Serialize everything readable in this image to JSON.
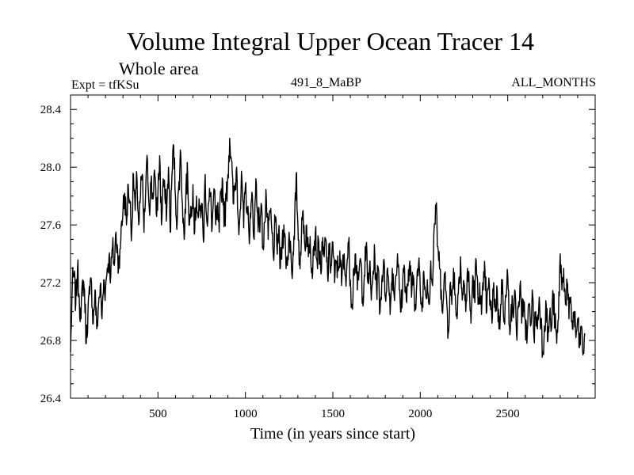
{
  "chart_data": {
    "type": "line",
    "title": "Volume Integral Upper Ocean Tracer 14",
    "subtitle": "Whole area",
    "annotations": {
      "left": "Expt = tfKSu",
      "center": "491_8_MaBP",
      "right": "ALL_MONTHS"
    },
    "xlabel": "Time (in years since start)",
    "ylabel": "",
    "xlim": [
      0,
      3000
    ],
    "ylim": [
      26.4,
      28.5
    ],
    "xticks": [
      500,
      1000,
      1500,
      2000,
      2500
    ],
    "xtick_labels": [
      "500",
      "1000",
      "1500",
      "2000",
      "2500"
    ],
    "yticks": [
      26.4,
      26.8,
      27.2,
      27.6,
      28.0,
      28.4
    ],
    "ytick_labels": [
      "26.4",
      "26.8",
      "27.2",
      "27.6",
      "28.0",
      "28.4"
    ],
    "series": [
      {
        "name": "Tracer 14",
        "color": "#000000",
        "x_step": 10,
        "x_start": 0,
        "values": [
          26.72,
          27.18,
          27.25,
          27.05,
          27.3,
          27.1,
          26.95,
          27.22,
          27.15,
          26.78,
          27.02,
          27.12,
          27.2,
          26.92,
          27.15,
          26.88,
          27.05,
          27.18,
          26.95,
          27.22,
          27.15,
          27.3,
          27.38,
          27.25,
          27.45,
          27.32,
          27.55,
          27.4,
          27.3,
          27.6,
          27.7,
          27.82,
          27.6,
          27.88,
          27.75,
          27.55,
          27.95,
          27.7,
          27.92,
          27.6,
          27.8,
          27.95,
          27.55,
          27.85,
          28.05,
          27.72,
          27.9,
          27.78,
          27.98,
          27.68,
          27.82,
          28.08,
          27.6,
          27.92,
          27.78,
          27.7,
          28.0,
          27.55,
          27.95,
          28.15,
          27.8,
          27.62,
          27.9,
          28.1,
          27.75,
          27.5,
          27.85,
          27.95,
          27.6,
          27.72,
          27.88,
          27.55,
          27.8,
          27.65,
          27.7,
          27.75,
          27.48,
          27.95,
          27.62,
          27.75,
          27.8,
          27.58,
          27.85,
          27.6,
          27.7,
          27.55,
          27.82,
          27.9,
          27.62,
          27.78,
          27.95,
          28.2,
          28.05,
          27.75,
          27.85,
          28.0,
          27.62,
          27.7,
          27.92,
          27.58,
          27.88,
          27.72,
          27.55,
          27.65,
          27.8,
          27.5,
          27.92,
          27.68,
          27.6,
          27.75,
          27.45,
          27.62,
          27.78,
          27.5,
          27.7,
          27.58,
          27.38,
          27.62,
          27.45,
          27.55,
          27.3,
          27.48,
          27.6,
          27.4,
          27.32,
          27.55,
          27.42,
          27.28,
          27.5,
          27.95,
          27.6,
          27.35,
          27.5,
          27.7,
          27.45,
          27.6,
          27.38,
          27.52,
          27.3,
          27.45,
          27.55,
          27.35,
          27.48,
          27.3,
          27.42,
          27.38,
          27.5,
          27.25,
          27.4,
          27.32,
          27.48,
          27.2,
          27.35,
          27.28,
          27.42,
          27.18,
          27.38,
          27.25,
          27.32,
          27.48,
          27.22,
          27.05,
          27.3,
          27.4,
          27.15,
          27.28,
          27.35,
          27.1,
          27.25,
          27.45,
          27.2,
          27.32,
          27.08,
          27.28,
          27.38,
          27.15,
          27.3,
          27.0,
          27.22,
          27.35,
          27.1,
          27.28,
          27.18,
          27.05,
          27.3,
          27.12,
          27.25,
          27.4,
          27.15,
          27.0,
          27.22,
          27.3,
          27.08,
          27.18,
          27.35,
          27.1,
          27.25,
          27.05,
          27.2,
          27.32,
          27.15,
          27.0,
          27.28,
          27.12,
          27.22,
          27.05,
          27.35,
          27.18,
          27.6,
          27.72,
          27.45,
          27.3,
          27.15,
          27.05,
          27.25,
          27.1,
          26.85,
          27.18,
          27.05,
          27.3,
          27.12,
          26.95,
          27.22,
          27.38,
          27.08,
          27.2,
          27.0,
          27.3,
          27.15,
          26.92,
          27.25,
          27.1,
          27.35,
          27.05,
          27.2,
          26.98,
          27.15,
          27.28,
          27.0,
          27.18,
          27.08,
          26.92,
          27.2,
          27.0,
          27.15,
          26.88,
          27.05,
          27.22,
          26.95,
          27.1,
          27.25,
          26.9,
          27.05,
          26.98,
          27.15,
          26.85,
          27.02,
          27.18,
          26.92,
          27.08,
          26.95,
          26.78,
          27.05,
          26.9,
          27.15,
          26.82,
          27.0,
          26.88,
          27.1,
          26.95,
          26.72,
          26.9,
          27.05,
          26.8,
          26.98,
          26.88,
          27.12,
          26.92,
          26.78,
          26.95,
          27.4,
          27.15,
          27.3,
          27.05,
          27.2,
          26.95,
          27.1,
          26.88,
          27.0,
          26.82,
          26.95,
          26.75,
          26.9,
          26.7,
          26.85
        ]
      }
    ]
  }
}
